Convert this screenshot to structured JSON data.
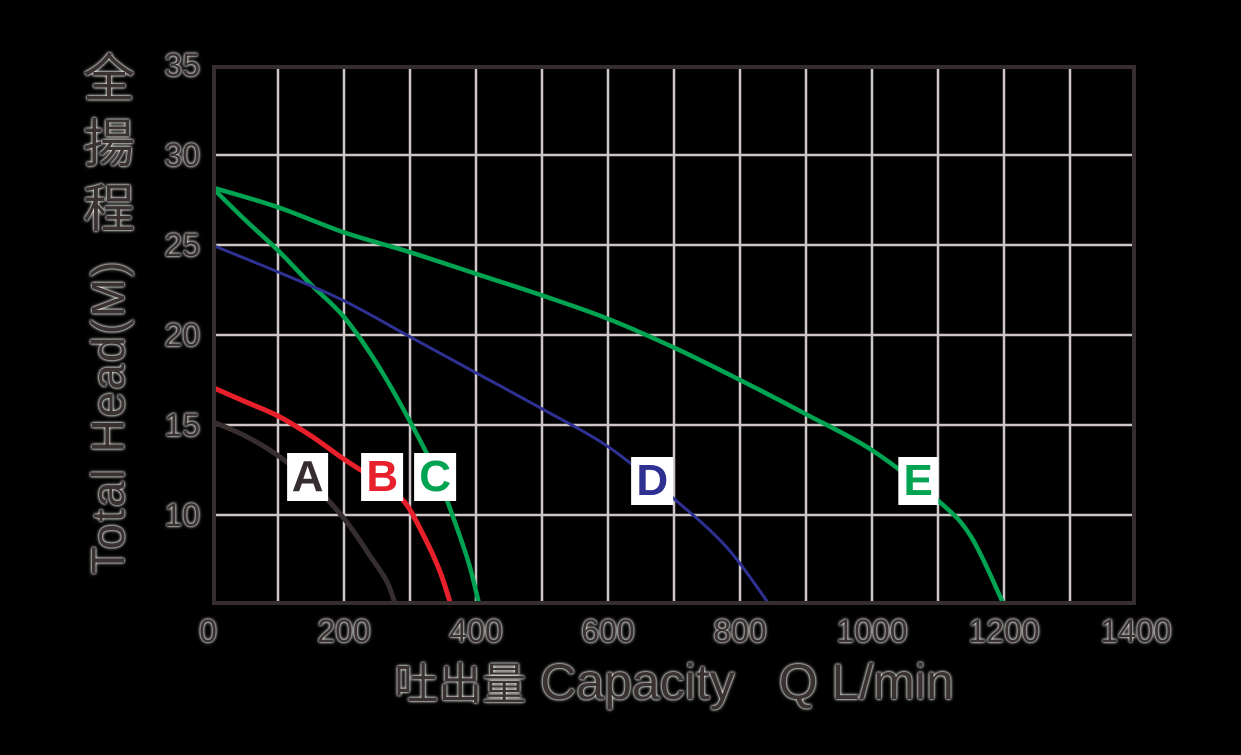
{
  "axes": {
    "x": {
      "label_cjk": "吐出量",
      "label_en": "Capacity",
      "label_unit": "Q L/min",
      "min": 0,
      "max": 1400,
      "grid_step": 100,
      "ticks": [
        0,
        200,
        400,
        600,
        800,
        1000,
        1200,
        1400
      ]
    },
    "y": {
      "label_cjk": "全揚程",
      "label_en": "Total Head(M)",
      "min": 5,
      "max": 35,
      "grid_step": 5,
      "ticks": [
        35,
        30,
        25,
        20,
        15,
        10
      ]
    }
  },
  "colors": {
    "background": "#000000",
    "grid": "#cec6c6",
    "frame": "#362e2e",
    "text": "#3a3230",
    "label_box": "#ffffff",
    "curve_black": "#362e2e",
    "curve_red": "#e8202b",
    "curve_green": "#00a351",
    "curve_blue": "#2e3192"
  },
  "chart_data": {
    "type": "line",
    "title": "",
    "xlabel": "吐出量 Capacity  Q L/min",
    "ylabel": "全揚程 Total Head(M)",
    "xlim": [
      0,
      1400
    ],
    "ylim": [
      5,
      35
    ],
    "grid": true,
    "legend_position": "inline-labels",
    "series": [
      {
        "name": "A",
        "color": "#362e2e",
        "stroke_width": 5,
        "label_x": 145,
        "label_y": 12.1,
        "points": [
          [
            0,
            15.2
          ],
          [
            50,
            14.4
          ],
          [
            100,
            13.3
          ],
          [
            150,
            11.8
          ],
          [
            200,
            9.8
          ],
          [
            240,
            7.7
          ],
          [
            265,
            6.3
          ],
          [
            278,
            5
          ]
        ]
      },
      {
        "name": "B",
        "color": "#e8202b",
        "stroke_width": 5,
        "label_x": 258,
        "label_y": 12.1,
        "points": [
          [
            0,
            17.1
          ],
          [
            50,
            16.3
          ],
          [
            100,
            15.5
          ],
          [
            150,
            14.4
          ],
          [
            200,
            13.1
          ],
          [
            250,
            11.9
          ],
          [
            290,
            10.8
          ],
          [
            320,
            8.9
          ],
          [
            345,
            6.9
          ],
          [
            362,
            5
          ]
        ]
      },
      {
        "name": "C",
        "color": "#00a351",
        "stroke_width": 4.5,
        "label_x": 338,
        "label_y": 12.1,
        "points": [
          [
            0,
            28.2
          ],
          [
            50,
            26.4
          ],
          [
            100,
            24.7
          ],
          [
            150,
            22.8
          ],
          [
            200,
            21.0
          ],
          [
            250,
            18.4
          ],
          [
            300,
            15.2
          ],
          [
            340,
            12.3
          ],
          [
            370,
            9.4
          ],
          [
            390,
            7.2
          ],
          [
            405,
            5
          ]
        ]
      },
      {
        "name": "D",
        "color": "#2e3192",
        "stroke_width": 3,
        "label_x": 667,
        "label_y": 11.9,
        "points": [
          [
            0,
            25.0
          ],
          [
            100,
            23.5
          ],
          [
            200,
            21.9
          ],
          [
            300,
            19.9
          ],
          [
            400,
            17.9
          ],
          [
            500,
            15.9
          ],
          [
            600,
            13.8
          ],
          [
            700,
            10.9
          ],
          [
            780,
            8.2
          ],
          [
            845,
            5
          ]
        ]
      },
      {
        "name": "E",
        "color": "#00a351",
        "stroke_width": 4.5,
        "label_x": 1070,
        "label_y": 11.9,
        "points": [
          [
            0,
            28.2
          ],
          [
            100,
            27.1
          ],
          [
            200,
            25.7
          ],
          [
            300,
            24.6
          ],
          [
            400,
            23.4
          ],
          [
            500,
            22.2
          ],
          [
            600,
            20.9
          ],
          [
            700,
            19.3
          ],
          [
            800,
            17.5
          ],
          [
            900,
            15.6
          ],
          [
            1000,
            13.6
          ],
          [
            1100,
            10.8
          ],
          [
            1150,
            8.8
          ],
          [
            1200,
            5
          ]
        ]
      }
    ]
  }
}
